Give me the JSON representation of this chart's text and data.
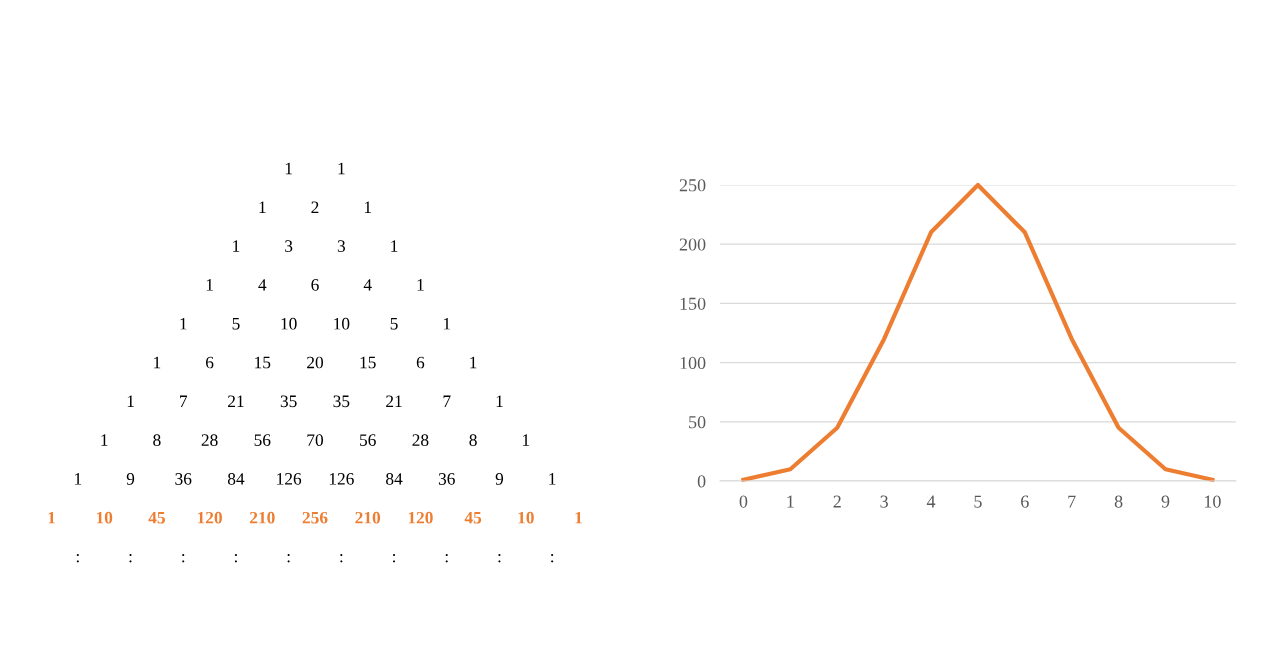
{
  "chart_data": [
    {
      "type": "other",
      "annotations": [
        "1 1",
        "1 2 1",
        "1 3 3 1",
        "1 4 6 4 1",
        "1 5 10 10 5 1",
        "1 6 15 20 15 6 1",
        "1 7 21 35 35 21 7 1",
        "1 8 28 56 70 56 28 8 1",
        "1 9 36 84 126 126 84 36 9 1",
        "1 10 45 120 210 256 210 120 45 10 1",
        ": : : : : : : : : :"
      ],
      "colors": [
        "#000000",
        "#000000",
        "#000000",
        "#000000",
        "#000000",
        "#000000",
        "#000000",
        "#000000",
        "#000000",
        "#ed7d31",
        "#000000"
      ]
    },
    {
      "type": "line",
      "categories": [
        "0",
        "1",
        "2",
        "3",
        "4",
        "5",
        "6",
        "7",
        "8",
        "9",
        "10"
      ],
      "series": [
        {
          "color": "#ed7d31",
          "values": [
            1,
            10,
            45,
            120,
            210,
            250,
            210,
            120,
            45,
            10,
            1
          ]
        }
      ],
      "ylim": [
        0,
        250
      ],
      "yticks": [
        0,
        50,
        100,
        150,
        200,
        250
      ],
      "grid": "y"
    }
  ]
}
